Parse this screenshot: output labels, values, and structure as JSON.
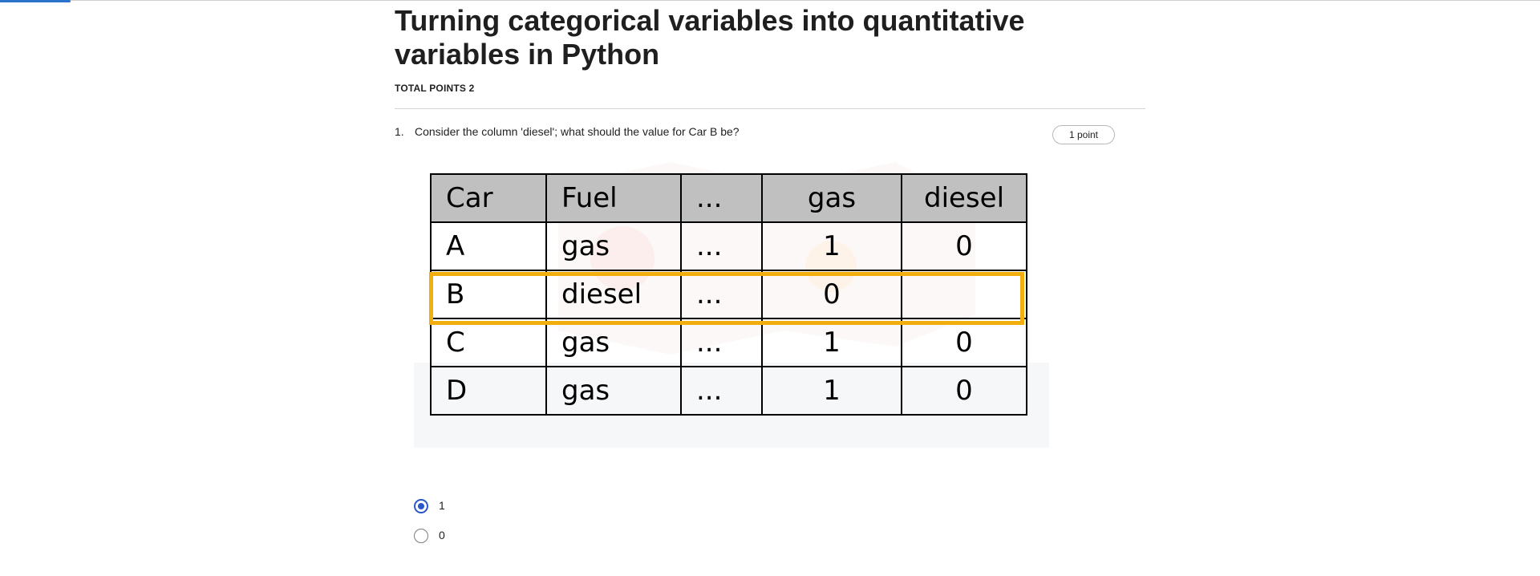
{
  "quiz": {
    "title": "Turning categorical variables into quantitative variables in Python",
    "total_points": "TOTAL POINTS 2"
  },
  "question": {
    "number": "1.",
    "text": "Consider the column 'diesel'; what should the value for Car B be?",
    "points": "1 point"
  },
  "table": {
    "headers": [
      "Car",
      "Fuel",
      "...",
      "gas",
      "diesel"
    ],
    "rows": [
      [
        "A",
        "gas",
        "...",
        "1",
        "0"
      ],
      [
        "B",
        "diesel",
        "...",
        "0",
        ""
      ],
      [
        "C",
        "gas",
        "...",
        "1",
        "0"
      ],
      [
        "D",
        "gas",
        "...",
        "1",
        "0"
      ]
    ],
    "highlighted_row": "B",
    "highlight_color": "#f2ad0f",
    "header_color": "#c0c0c0"
  },
  "options": [
    {
      "label": "1",
      "selected": true
    },
    {
      "label": "0",
      "selected": false
    }
  ],
  "colors": {
    "accent": "#2a57c9",
    "progress": "#2a73cc"
  }
}
